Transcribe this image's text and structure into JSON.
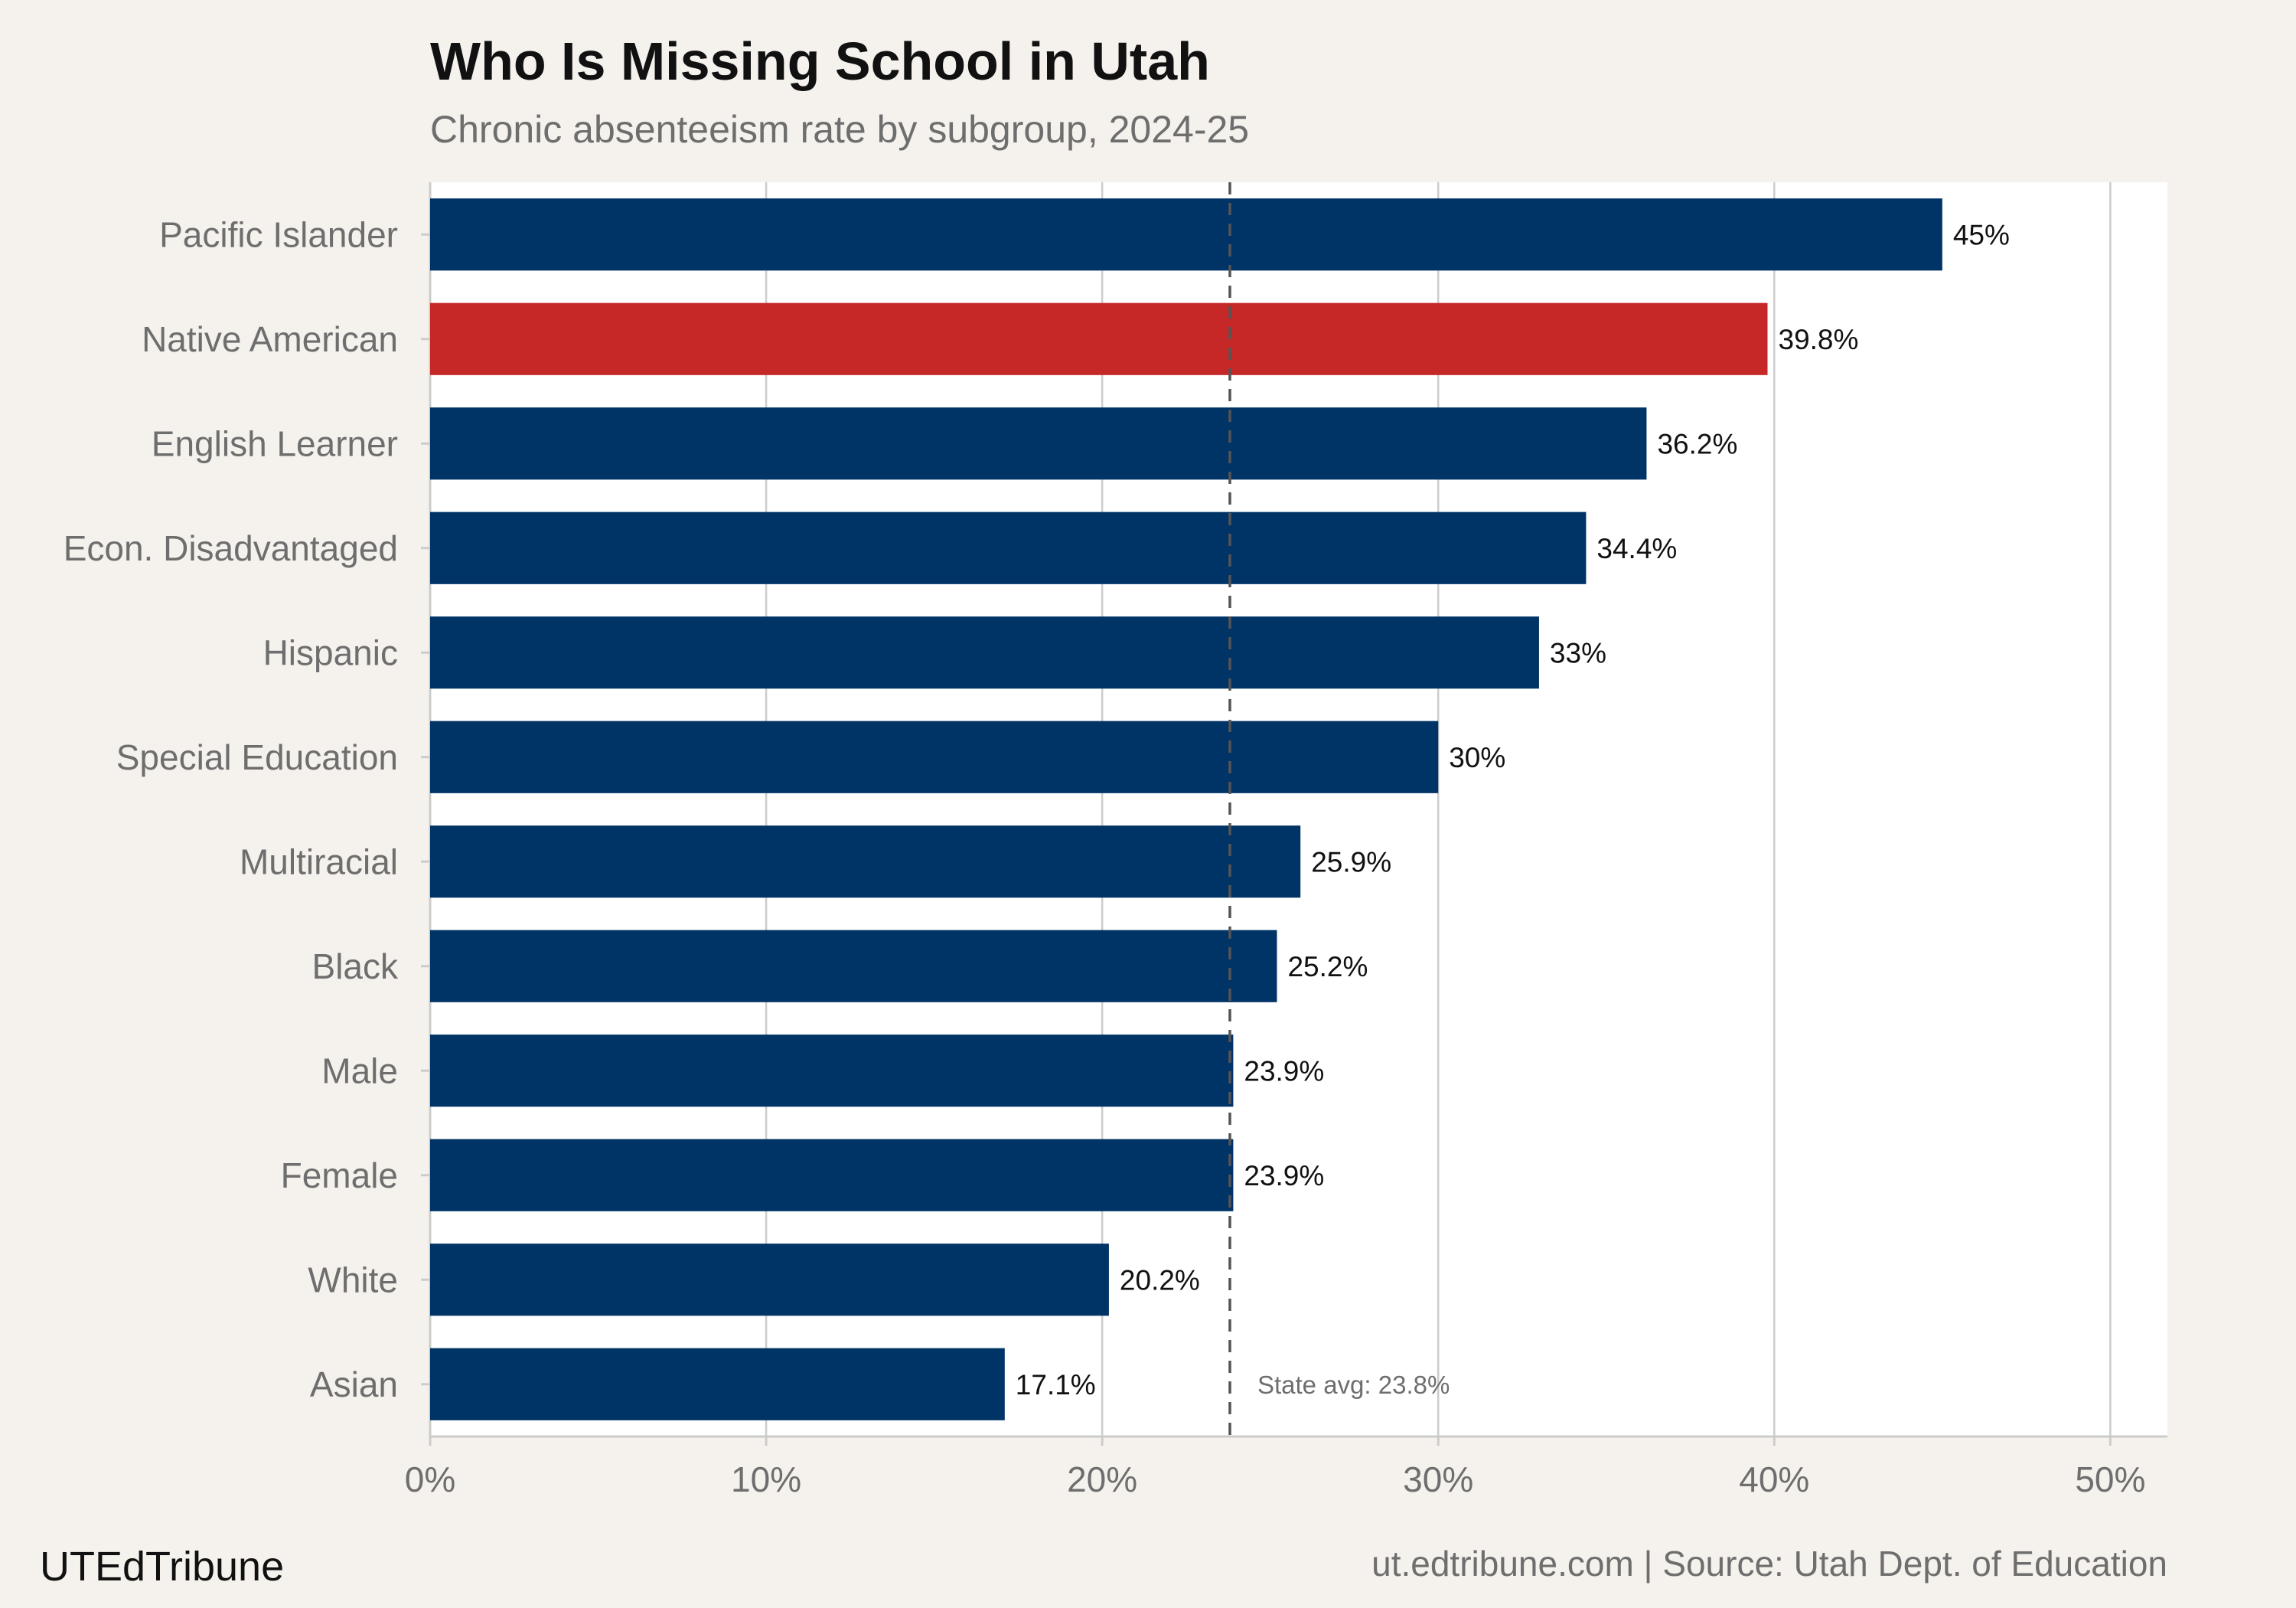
{
  "chart_data": {
    "type": "bar",
    "orientation": "horizontal",
    "title": "Who Is Missing School in Utah",
    "subtitle": "Chronic absenteeism rate by subgroup, 2024-25",
    "categories": [
      "Pacific Islander",
      "Native American",
      "English Learner",
      "Econ. Disadvantaged",
      "Hispanic",
      "Special Education",
      "Multiracial",
      "Black",
      "Male",
      "Female",
      "White",
      "Asian"
    ],
    "values": [
      45,
      39.8,
      36.2,
      34.4,
      33,
      30,
      25.9,
      25.2,
      23.9,
      23.9,
      20.2,
      17.1
    ],
    "data_labels": [
      "45%",
      "39.8%",
      "36.2%",
      "34.4%",
      "33%",
      "30%",
      "25.9%",
      "25.2%",
      "23.9%",
      "23.9%",
      "20.2%",
      "17.1%"
    ],
    "highlight": "Native American",
    "xlim": [
      0,
      51.7
    ],
    "xticks": [
      0,
      10,
      20,
      30,
      40,
      50
    ],
    "xtick_labels": [
      "0%",
      "10%",
      "20%",
      "30%",
      "40%",
      "50%"
    ],
    "xlabel": "",
    "ylabel": "",
    "reference_line": {
      "value": 23.8,
      "label": "State avg: 23.8%"
    },
    "grid": "vertical",
    "colors": {
      "bar": "#003366",
      "highlight": "#c62828",
      "background": "#f5f2ed",
      "plot_background": "#ffffff",
      "grid": "#cccccc",
      "reference_line": "#555555"
    }
  },
  "footer": {
    "brand": "UTEdTribune",
    "source": "ut.edtribune.com | Source: Utah Dept. of Education"
  }
}
